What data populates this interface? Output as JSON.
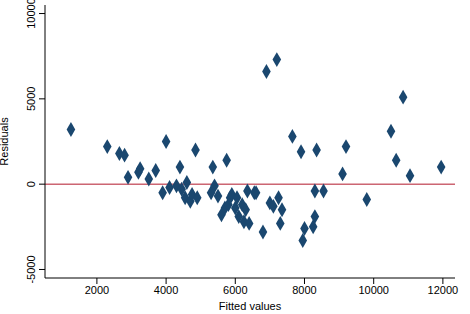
{
  "chart_data": {
    "type": "scatter",
    "x_label": "Fitted values",
    "y_label": "Residuals",
    "marker": "diamond",
    "color": "#1a476f",
    "xlim": [
      500,
      12350
    ],
    "xticks": [
      2000,
      4000,
      6000,
      8000,
      10000,
      12000
    ],
    "ylim": [
      -5500,
      10500
    ],
    "yticks": [
      -5000,
      0,
      5000,
      10000
    ],
    "grid": false,
    "reference_line": {
      "y": 0,
      "color": "#b2182b"
    },
    "x": [
      1250,
      2300,
      2650,
      2800,
      2900,
      3200,
      3250,
      3500,
      3700,
      3900,
      4000,
      4100,
      4300,
      4400,
      4450,
      4550,
      4600,
      4700,
      4750,
      4850,
      4900,
      5300,
      5350,
      5400,
      5500,
      5600,
      5700,
      5750,
      5800,
      5850,
      5900,
      6000,
      6050,
      6100,
      6200,
      6250,
      6300,
      6350,
      6400,
      6550,
      6600,
      6800,
      6900,
      7000,
      7100,
      7200,
      7250,
      7300,
      7350,
      7650,
      7900,
      7950,
      8000,
      8250,
      8300,
      8300,
      8350,
      8550,
      9100,
      9200,
      9800,
      10500,
      10650,
      10850,
      11050,
      11950
    ],
    "values": [
      3200,
      2200,
      1800,
      1700,
      400,
      700,
      900,
      300,
      800,
      -500,
      2500,
      -200,
      -100,
      1000,
      -300,
      -800,
      100,
      -1000,
      -600,
      2000,
      -800,
      -500,
      1000,
      -100,
      -700,
      -1800,
      -1400,
      1400,
      -1200,
      -800,
      -600,
      -1400,
      -800,
      -1900,
      -1200,
      -2200,
      -1500,
      -400,
      -2300,
      -500,
      -500,
      -2800,
      6600,
      -1100,
      -1300,
      7300,
      -800,
      -2300,
      -1500,
      2800,
      1900,
      -3300,
      -2600,
      -2500,
      -1900,
      -400,
      2000,
      -400,
      600,
      2200,
      -900,
      3100,
      1400,
      5100,
      500,
      1000
    ]
  }
}
